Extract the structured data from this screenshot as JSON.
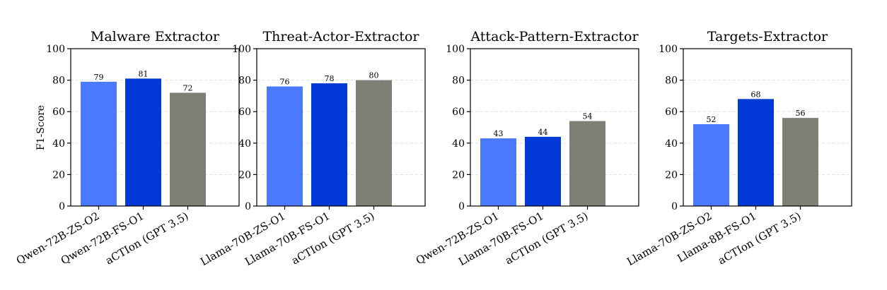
{
  "figure": {
    "ylabel": "F1-Score"
  },
  "colors": {
    "bar1": "#4a79fc",
    "bar2": "#0339d6",
    "bar3": "#7e8076",
    "grid": "#d9d9d9"
  },
  "chart_data": [
    {
      "type": "bar",
      "title": "Malware Extractor",
      "categories": [
        "Qwen-72B-ZS-O2",
        "Qwen-72B-FS-O1",
        "aCTIon (GPT 3.5)"
      ],
      "values": [
        79,
        81,
        72
      ],
      "ylabel": "F1-Score",
      "ylim": [
        0,
        100
      ],
      "yticks": [
        0,
        20,
        40,
        60,
        80,
        100
      ],
      "grid": true
    },
    {
      "type": "bar",
      "title": "Threat-Actor-Extractor",
      "categories": [
        "Llama-70B-ZS-O1",
        "Llama-70B-FS-O1",
        "aCTIon (GPT 3.5)"
      ],
      "values": [
        76,
        78,
        80
      ],
      "ylabel": "",
      "ylim": [
        0,
        100
      ],
      "yticks": [
        0,
        20,
        40,
        60,
        80,
        100
      ],
      "grid": true
    },
    {
      "type": "bar",
      "title": "Attack-Pattern-Extractor",
      "categories": [
        "Qwen-72B-ZS-O1",
        "Llama-70B-FS-O1",
        "aCTIon (GPT 3.5)"
      ],
      "values": [
        43,
        44,
        54
      ],
      "ylabel": "",
      "ylim": [
        0,
        100
      ],
      "yticks": [
        0,
        20,
        40,
        60,
        80,
        100
      ],
      "grid": true
    },
    {
      "type": "bar",
      "title": "Targets-Extractor",
      "categories": [
        "Llama-70B-ZS-O2",
        "Llama-8B-FS-O1",
        "aCTIon (GPT 3.5)"
      ],
      "values": [
        52,
        68,
        56
      ],
      "ylabel": "",
      "ylim": [
        0,
        100
      ],
      "yticks": [
        0,
        20,
        40,
        60,
        80,
        100
      ],
      "grid": true
    }
  ]
}
